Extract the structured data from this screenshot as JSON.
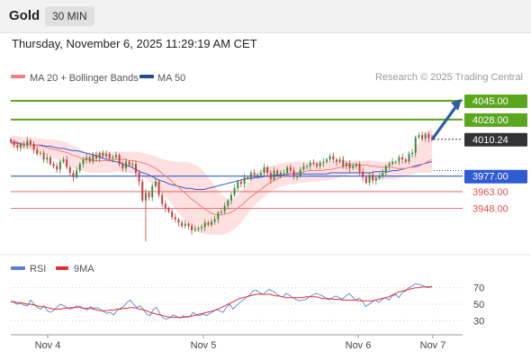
{
  "header": {
    "instrument": "Gold",
    "timeframe": "30 MIN"
  },
  "datetime": "Thursday, November 6, 2025 11:29:19 AM CET",
  "credit": "Research © 2025 Trading Central",
  "legend": {
    "ma20": {
      "label": "MA 20 + Bollinger Bands",
      "color": "#f08080"
    },
    "ma50": {
      "label": "MA 50",
      "color": "#1f4e8c"
    },
    "rsi": {
      "label": "RSI",
      "color": "#5b7fd6"
    },
    "ma9": {
      "label": "9MA",
      "color": "#e03030"
    }
  },
  "colors": {
    "resistance": "#5aa61e",
    "pivot": "#2f5bd3",
    "support": "#e05050",
    "last": "#333333",
    "up": "#3f8a3f",
    "down": "#c93d3d",
    "band": "#fdd5d5"
  },
  "chart_data": [
    {
      "type": "candlestick",
      "x_labels": [
        "Nov 4",
        "Nov 5",
        "Nov 6",
        "Nov 7"
      ],
      "y_range": [
        3915,
        4058
      ],
      "levels": [
        {
          "value": 4045.0,
          "label": "4045.00",
          "kind": "resistance"
        },
        {
          "value": 4028.0,
          "label": "4028.00",
          "kind": "resistance"
        },
        {
          "value": 4010.24,
          "label": "4010.24",
          "kind": "last"
        },
        {
          "value": 3977.0,
          "label": "3977.00",
          "kind": "pivot"
        },
        {
          "value": 3963.0,
          "label": "3963.00",
          "kind": "support"
        },
        {
          "value": 3948.0,
          "label": "3948.00",
          "kind": "support"
        }
      ],
      "closes": [
        4008,
        4005,
        4003,
        4006,
        4004,
        4009,
        4006,
        4001,
        3997,
        3998,
        3992,
        3994,
        3988,
        3986,
        3983,
        3990,
        3992,
        3985,
        3980,
        3976,
        3982,
        3988,
        3992,
        3994,
        3990,
        3996,
        3993,
        3998,
        3995,
        3997,
        3993,
        3994,
        3996,
        3988,
        3984,
        3990,
        3987,
        3988,
        3980,
        3972,
        3955,
        3962,
        3958,
        3968,
        3972,
        3960,
        3952,
        3948,
        3945,
        3940,
        3938,
        3935,
        3932,
        3934,
        3932,
        3928,
        3929,
        3930,
        3931,
        3935,
        3933,
        3936,
        3938,
        3944,
        3945,
        3950,
        3955,
        3960,
        3966,
        3972,
        3970,
        3976,
        3975,
        3980,
        3978,
        3978,
        3980,
        3985,
        3980,
        3974,
        3982,
        3978,
        3980,
        3980,
        3985,
        3982,
        3977,
        3977,
        3983,
        3986,
        3986,
        3989,
        3988,
        3986,
        3989,
        3990,
        3992,
        3995,
        3992,
        3990,
        3992,
        3986,
        3989,
        3984,
        3986,
        3988,
        3981,
        3976,
        3971,
        3978,
        3973,
        3975,
        3977,
        3980,
        3986,
        3988,
        3990,
        3990,
        3994,
        3992,
        3990,
        3997,
        3998,
        4012,
        4014,
        4011,
        4015,
        4011,
        4010
      ],
      "ma20": [
        4009,
        4008,
        4007,
        4006,
        4006,
        4005,
        4005,
        4004,
        4003,
        4002,
        4001,
        4000,
        3999,
        3998,
        3996,
        3995,
        3993,
        3992,
        3992,
        3991,
        3991,
        3991,
        3991,
        3992,
        3992,
        3992,
        3992,
        3991,
        3991,
        3990,
        3989,
        3988,
        3986,
        3984,
        3981,
        3978,
        3975,
        3971,
        3968,
        3964,
        3961,
        3957,
        3954,
        3951,
        3948,
        3945,
        3943,
        3942,
        3942,
        3943,
        3944,
        3946,
        3949,
        3952,
        3956,
        3959,
        3962,
        3965,
        3968,
        3971,
        3973,
        3975,
        3977,
        3978,
        3979,
        3980,
        3980,
        3981,
        3982,
        3982,
        3982,
        3982,
        3983,
        3983,
        3984,
        3985,
        3986,
        3987,
        3987,
        3987,
        3987,
        3987,
        3986,
        3986,
        3985,
        3985,
        3985,
        3985,
        3984,
        3984,
        3984,
        3985,
        3985,
        3986,
        3988,
        3990,
        3992
      ],
      "upper_band": [
        4014,
        4013,
        4013,
        4012,
        4012,
        4012,
        4011,
        4011,
        4010,
        4010,
        4010,
        4009,
        4008,
        4007,
        4005,
        4003,
        4001,
        3999,
        3998,
        3998,
        3998,
        3999,
        3999,
        3999,
        3999,
        3999,
        3999,
        3999,
        3999,
        3999,
        3998,
        3997,
        3996,
        3995,
        3993,
        3992,
        3991,
        3990,
        3990,
        3990,
        3990,
        3989,
        3987,
        3985,
        3981,
        3976,
        3971,
        3966,
        3961,
        3957,
        3955,
        3957,
        3961,
        3966,
        3971,
        3976,
        3980,
        3983,
        3985,
        3986,
        3987,
        3988,
        3989,
        3989,
        3990,
        3990,
        3990,
        3990,
        3990,
        3990,
        3990,
        3990,
        3990,
        3990,
        3991,
        3991,
        3991,
        3991,
        3991,
        3991,
        3991,
        3991,
        3991,
        3991,
        3990,
        3990,
        3990,
        3990,
        3990,
        3990,
        3991,
        3994,
        4000,
        4008,
        4015,
        4018,
        4020
      ],
      "lower_band": [
        4003,
        4003,
        4002,
        4001,
        4001,
        4000,
        3999,
        3998,
        3996,
        3995,
        3993,
        3991,
        3989,
        3987,
        3985,
        3983,
        3982,
        3981,
        3980,
        3980,
        3980,
        3980,
        3980,
        3980,
        3981,
        3981,
        3981,
        3980,
        3979,
        3978,
        3976,
        3974,
        3971,
        3968,
        3964,
        3960,
        3955,
        3950,
        3945,
        3940,
        3935,
        3931,
        3928,
        3926,
        3925,
        3924,
        3924,
        3924,
        3924,
        3925,
        3927,
        3929,
        3933,
        3938,
        3943,
        3948,
        3952,
        3956,
        3959,
        3962,
        3965,
        3967,
        3968,
        3969,
        3970,
        3970,
        3971,
        3971,
        3972,
        3972,
        3972,
        3973,
        3973,
        3974,
        3975,
        3976,
        3977,
        3978,
        3979,
        3978,
        3977,
        3976,
        3975,
        3974,
        3974,
        3974,
        3974,
        3974,
        3975,
        3976,
        3977,
        3978,
        3979,
        3980,
        3980,
        3980,
        3980
      ],
      "ma50": [
        4007,
        4007,
        4006,
        4006,
        4006,
        4005,
        4005,
        4005,
        4004,
        4004,
        4003,
        4002,
        4002,
        4001,
        4000,
        4000,
        3999,
        3998,
        3997,
        3996,
        3995,
        3993,
        3992,
        3991,
        3990,
        3989,
        3987,
        3986,
        3984,
        3982,
        3980,
        3979,
        3977,
        3975,
        3973,
        3972,
        3970,
        3969,
        3968,
        3967,
        3966,
        3966,
        3965,
        3965,
        3965,
        3966,
        3967,
        3968,
        3969,
        3970,
        3971,
        3972,
        3973,
        3974,
        3975,
        3975,
        3976,
        3976,
        3977,
        3977,
        3978,
        3978,
        3978,
        3979,
        3979,
        3979,
        3979,
        3979,
        3979,
        3979,
        3979,
        3979,
        3979,
        3980,
        3980,
        3980,
        3980,
        3980,
        3980,
        3980,
        3980,
        3980,
        3980,
        3981,
        3981,
        3981,
        3981,
        3982,
        3982,
        3983,
        3984,
        3985,
        3986,
        3987,
        3988,
        3989,
        3990
      ]
    },
    {
      "type": "line",
      "indicator": "RSI",
      "y_ticks": [
        70,
        50,
        30
      ],
      "y_range": [
        15,
        85
      ],
      "rsi": [
        54,
        52,
        50,
        51,
        49,
        48,
        55,
        50,
        46,
        44,
        48,
        42,
        40,
        43,
        47,
        50,
        48,
        46,
        44,
        46,
        48,
        47,
        45,
        43,
        47,
        45,
        46,
        44,
        41,
        39,
        40,
        37,
        42,
        45,
        47,
        52,
        55,
        50,
        46,
        48,
        44,
        38,
        36,
        44,
        46,
        38,
        33,
        32,
        34,
        37,
        35,
        33,
        36,
        34,
        35,
        40,
        37,
        36,
        38,
        36,
        39,
        41,
        44,
        42,
        40,
        46,
        50,
        44,
        48,
        52,
        55,
        58,
        61,
        66,
        67,
        64,
        62,
        65,
        68,
        66,
        63,
        60,
        59,
        63,
        61,
        58,
        56,
        54,
        55,
        56,
        59,
        61,
        63,
        62,
        60,
        57,
        55,
        58,
        60,
        58,
        56,
        60,
        63,
        59,
        55,
        57,
        54,
        47,
        50,
        53,
        55,
        52,
        56,
        58,
        55,
        60,
        62,
        58,
        64,
        66,
        70,
        72,
        75,
        74,
        73,
        71,
        70,
        72
      ],
      "ma9": [
        53,
        53,
        52,
        52,
        51,
        50,
        50,
        49,
        48,
        47,
        47,
        46,
        45,
        44,
        44,
        44,
        45,
        45,
        46,
        46,
        46,
        46,
        45,
        45,
        45,
        44,
        43,
        42,
        42,
        42,
        43,
        43,
        44,
        44,
        45,
        45,
        46,
        46,
        45,
        44,
        43,
        42,
        40,
        39,
        38,
        37,
        36,
        35,
        34,
        34,
        34,
        34,
        34,
        35,
        35,
        36,
        37,
        38,
        39,
        40,
        41,
        42,
        43,
        45,
        47,
        49,
        51,
        53,
        55,
        57,
        58,
        59,
        60,
        61,
        62,
        62,
        62,
        62,
        62,
        61,
        60,
        60,
        59,
        58,
        58,
        58,
        58,
        58,
        58,
        59,
        59,
        59,
        59,
        58,
        57,
        57,
        57,
        56,
        56,
        56,
        55,
        55,
        55,
        55,
        55,
        54,
        54,
        54,
        54,
        54,
        55,
        56,
        57,
        58,
        59,
        61,
        63,
        65,
        66,
        67,
        68,
        69,
        70,
        70,
        71,
        71,
        71,
        71
      ]
    }
  ]
}
